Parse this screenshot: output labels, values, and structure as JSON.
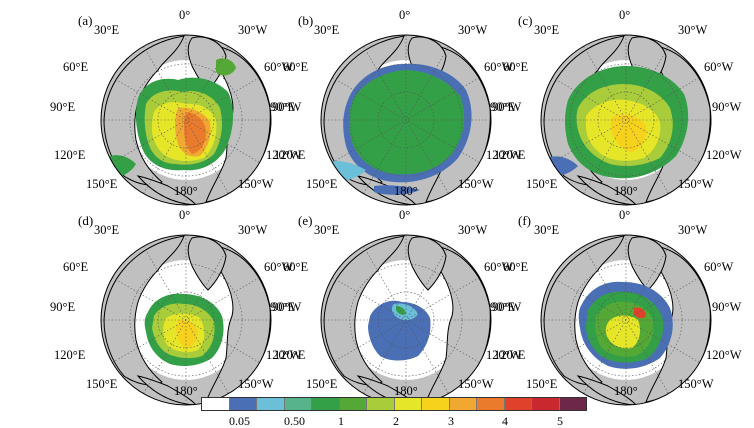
{
  "panels": [
    {
      "label": "(a)",
      "ice": "a"
    },
    {
      "label": "(b)",
      "ice": "b"
    },
    {
      "label": "(c)",
      "ice": "c"
    },
    {
      "label": "(d)",
      "ice": "d"
    },
    {
      "label": "(e)",
      "ice": "e"
    },
    {
      "label": "(f)",
      "ice": "f"
    }
  ],
  "longitude_labels": {
    "top": "0°",
    "bottom": "180°",
    "e30": "30°E",
    "w30": "30°W",
    "e60": "60°E",
    "w60": "60°W",
    "e90": "90°E",
    "w90": "90°W",
    "e120": "120°E",
    "w120": "120°W",
    "e150": "150°E",
    "w150": "150°W"
  },
  "colorbar": {
    "colors": [
      "#ffffff",
      "#4a6fb5",
      "#6bbfd9",
      "#56b38a",
      "#33a047",
      "#54a836",
      "#a8cc3a",
      "#e6e629",
      "#f7d21c",
      "#f0a830",
      "#ea7b2d",
      "#e0412a",
      "#c8282e",
      "#6d2748"
    ],
    "tick_labels": [
      "0.05",
      "0.50",
      "1",
      "2",
      "3",
      "4",
      "5"
    ]
  },
  "colors": {
    "land": "#c0c0c0",
    "ocean": "#ffffff",
    "coast": "#000000"
  }
}
